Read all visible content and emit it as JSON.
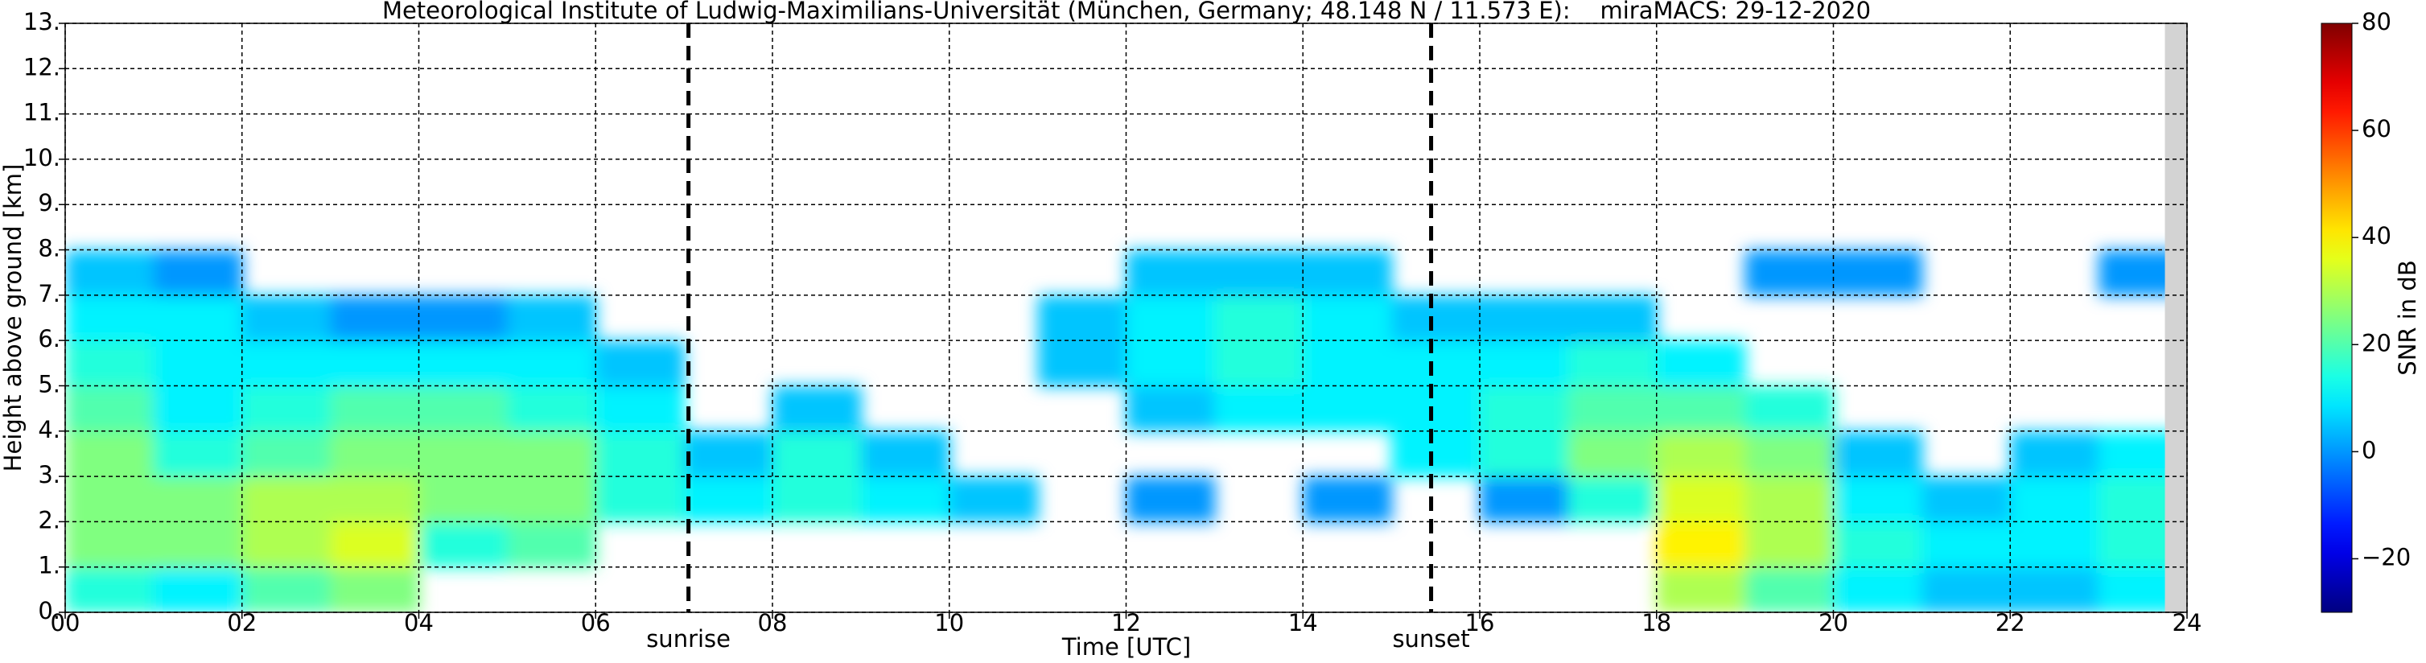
{
  "chart_data": {
    "type": "heatmap",
    "title": "Meteorological Institute of Ludwig-Maximilians-Universität (München, Germany; 48.148 N / 11.573 E):    miraMACS: 29-12-2020",
    "x_label": "Time [UTC]",
    "y_label": "Height above ground [km]",
    "colorbar_label": "SNR in dB",
    "colormap": "jet",
    "grid": true,
    "xlim": [
      0,
      24
    ],
    "ylim": [
      0,
      13
    ],
    "clim": [
      -30,
      80
    ],
    "xticks": [
      {
        "value": 0,
        "label": "00"
      },
      {
        "value": 2,
        "label": "02"
      },
      {
        "value": 4,
        "label": "04"
      },
      {
        "value": 6,
        "label": "06"
      },
      {
        "value": 8,
        "label": "08"
      },
      {
        "value": 10,
        "label": "10"
      },
      {
        "value": 12,
        "label": "12"
      },
      {
        "value": 14,
        "label": "14"
      },
      {
        "value": 16,
        "label": "16"
      },
      {
        "value": 18,
        "label": "18"
      },
      {
        "value": 20,
        "label": "20"
      },
      {
        "value": 22,
        "label": "22"
      },
      {
        "value": 24,
        "label": "24"
      }
    ],
    "yticks": [
      {
        "value": 0,
        "label": "0."
      },
      {
        "value": 1,
        "label": "1."
      },
      {
        "value": 2,
        "label": "2."
      },
      {
        "value": 3,
        "label": "3."
      },
      {
        "value": 4,
        "label": "4."
      },
      {
        "value": 5,
        "label": "5."
      },
      {
        "value": 6,
        "label": "6."
      },
      {
        "value": 7,
        "label": "7."
      },
      {
        "value": 8,
        "label": "8."
      },
      {
        "value": 9,
        "label": "9."
      },
      {
        "value": 10,
        "label": "10."
      },
      {
        "value": 11,
        "label": "11."
      },
      {
        "value": 12,
        "label": "12."
      },
      {
        "value": 13,
        "label": "13."
      }
    ],
    "cticks": [
      {
        "value": -20,
        "label": "−20"
      },
      0,
      20,
      40,
      60,
      80
    ],
    "annotations": [
      {
        "text": "sunrise",
        "x": 7.05
      },
      {
        "text": "sunset",
        "x": 15.45
      }
    ],
    "shaded_x": [
      23.75,
      24
    ],
    "x_edges": [
      0,
      1,
      2,
      3,
      4,
      5,
      6,
      7,
      8,
      9,
      10,
      11,
      12,
      13,
      14,
      15,
      16,
      17,
      18,
      19,
      20,
      21,
      22,
      23,
      24
    ],
    "y_edges": [
      0,
      1,
      2,
      3,
      4,
      5,
      6,
      7,
      8,
      9,
      10,
      11,
      12,
      13
    ],
    "values": [
      [
        15,
        25,
        25,
        25,
        20,
        15,
        10,
        5,
        null,
        null,
        null,
        null,
        null
      ],
      [
        10,
        25,
        25,
        15,
        10,
        10,
        10,
        0,
        null,
        null,
        null,
        null,
        null
      ],
      [
        20,
        30,
        30,
        20,
        15,
        10,
        5,
        null,
        null,
        null,
        null,
        null,
        null
      ],
      [
        25,
        35,
        30,
        25,
        20,
        10,
        0,
        null,
        null,
        null,
        null,
        null,
        null
      ],
      [
        null,
        15,
        25,
        25,
        20,
        10,
        0,
        null,
        null,
        null,
        null,
        null,
        null
      ],
      [
        null,
        20,
        25,
        25,
        15,
        10,
        5,
        null,
        null,
        null,
        null,
        null,
        null
      ],
      [
        null,
        null,
        15,
        15,
        10,
        5,
        null,
        null,
        null,
        null,
        null,
        null,
        null
      ],
      [
        null,
        null,
        10,
        5,
        null,
        null,
        null,
        null,
        null,
        null,
        null,
        null,
        null
      ],
      [
        null,
        null,
        15,
        15,
        5,
        null,
        null,
        null,
        null,
        null,
        null,
        null,
        null
      ],
      [
        null,
        null,
        10,
        5,
        null,
        null,
        null,
        null,
        null,
        null,
        null,
        null,
        null
      ],
      [
        null,
        null,
        5,
        null,
        null,
        null,
        null,
        null,
        null,
        null,
        null,
        null,
        null
      ],
      [
        null,
        null,
        null,
        null,
        null,
        5,
        5,
        null,
        null,
        null,
        null,
        null,
        null
      ],
      [
        null,
        null,
        0,
        null,
        5,
        10,
        10,
        5,
        null,
        null,
        null,
        null,
        null
      ],
      [
        null,
        null,
        null,
        null,
        10,
        15,
        15,
        5,
        null,
        null,
        null,
        null,
        null
      ],
      [
        null,
        null,
        0,
        null,
        10,
        10,
        10,
        5,
        null,
        null,
        null,
        null,
        null
      ],
      [
        null,
        null,
        null,
        10,
        10,
        10,
        5,
        null,
        null,
        null,
        null,
        null,
        null
      ],
      [
        null,
        null,
        0,
        15,
        15,
        10,
        5,
        null,
        null,
        null,
        null,
        null,
        null
      ],
      [
        null,
        null,
        15,
        25,
        20,
        15,
        5,
        null,
        null,
        null,
        null,
        null,
        null
      ],
      [
        30,
        40,
        35,
        30,
        20,
        10,
        null,
        null,
        null,
        null,
        null,
        null,
        null
      ],
      [
        20,
        30,
        30,
        25,
        15,
        null,
        null,
        0,
        null,
        null,
        null,
        null,
        null
      ],
      [
        10,
        15,
        10,
        5,
        null,
        null,
        null,
        0,
        null,
        null,
        null,
        null,
        null
      ],
      [
        5,
        10,
        5,
        null,
        null,
        null,
        null,
        null,
        null,
        null,
        null,
        null,
        null
      ],
      [
        5,
        10,
        10,
        5,
        null,
        null,
        null,
        null,
        null,
        null,
        null,
        null,
        null
      ],
      [
        10,
        15,
        15,
        10,
        null,
        null,
        null,
        0,
        null,
        null,
        null,
        null,
        null
      ]
    ]
  }
}
